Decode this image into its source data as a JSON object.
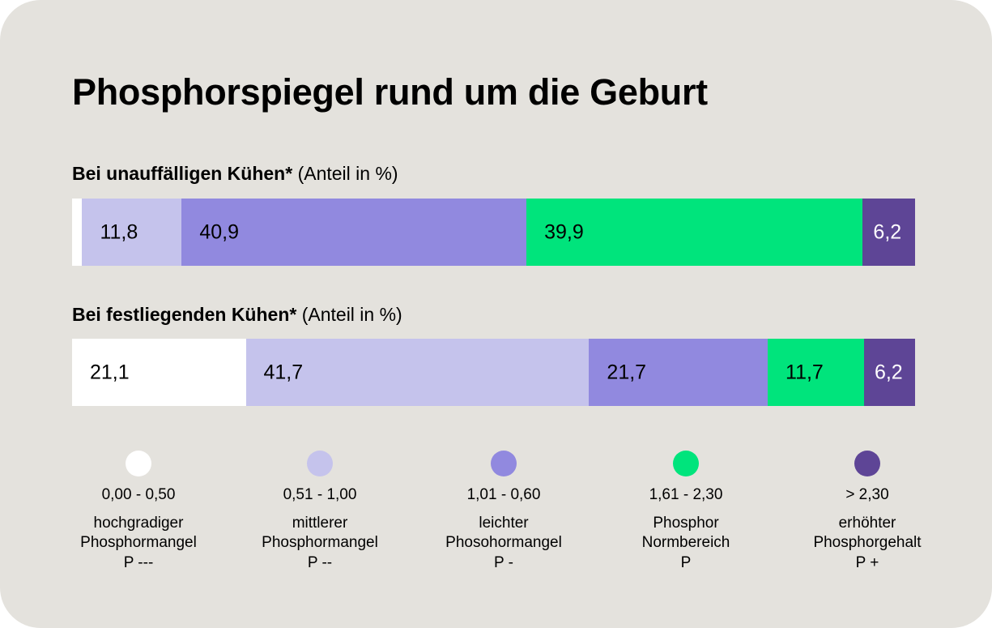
{
  "title": "Phosphorspiegel rund um die Geburt",
  "colors": [
    "#ffffff",
    "#c5c3ec",
    "#9189df",
    "#00e47c",
    "#5e4596"
  ],
  "label_colors": [
    "#000000",
    "#000000",
    "#000000",
    "#000000",
    "#ffffff"
  ],
  "chart_data": {
    "type": "bar",
    "orientation": "horizontal-stacked-100",
    "title": "Phosphorspiegel rund um die Geburt",
    "categories": [
      "0,00 - 0,50",
      "0,51 - 1,00",
      "1,01 - 0,60",
      "1,61 - 2,30",
      "> 2,30"
    ],
    "bars": [
      {
        "heading_bold": "Bei unauffälligen Kühen*",
        "heading_rest": " (Anteil in %)",
        "values": [
          1.2,
          11.8,
          40.9,
          39.9,
          6.2
        ],
        "labels": [
          null,
          "11,8",
          "40,9",
          "39,9",
          "6,2"
        ]
      },
      {
        "heading_bold": "Bei festliegenden Kühen*",
        "heading_rest": " (Anteil in %)",
        "values": [
          21.1,
          41.7,
          21.7,
          11.7,
          6.2
        ],
        "labels": [
          "21,1",
          "41,7",
          "21,7",
          "11,7",
          "6,2"
        ]
      }
    ],
    "legend": [
      {
        "range": "0,00 - 0,50",
        "line1": "hochgradiger",
        "line2": "Phosphormangel",
        "line3": "P ---"
      },
      {
        "range": "0,51 - 1,00",
        "line1": "mittlerer",
        "line2": "Phosphormangel",
        "line3": "P --"
      },
      {
        "range": "1,01 - 0,60",
        "line1": "leichter",
        "line2": "Phosohormangel",
        "line3": "P -"
      },
      {
        "range": "1,61 - 2,30",
        "line1": "Phosphor",
        "line2": "Normbereich",
        "line3": "P"
      },
      {
        "range": "> 2,30",
        "line1": "erhöhter",
        "line2": "Phosphorgehalt",
        "line3": "P +"
      }
    ],
    "legend_placement": "bottom",
    "grid": false
  }
}
